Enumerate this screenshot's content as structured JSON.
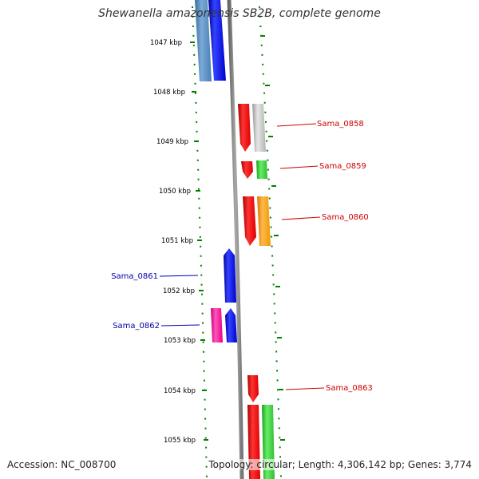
{
  "title": "Shewanella amazonensis SB2B, complete genome",
  "accession_text": "Accession: NC_008700",
  "topology_text": "Topology: circular; Length: 4,306,142 bp; Genes: 3,774",
  "colors": {
    "backbone": "#808080",
    "tick": "#008000",
    "label_right": "#cc0000",
    "label_left": "#0000aa"
  },
  "scale_labels": [
    "1047 kbp",
    "1048 kbp",
    "1049 kbp",
    "1050 kbp",
    "1051 kbp",
    "1052 kbp",
    "1053 kbp",
    "1054 kbp",
    "1055 kbp"
  ],
  "gene_labels": [
    {
      "text": "Sama_0858",
      "side": "right"
    },
    {
      "text": "Sama_0859",
      "side": "right"
    },
    {
      "text": "Sama_0860",
      "side": "right"
    },
    {
      "text": "Sama_0861",
      "side": "left"
    },
    {
      "text": "Sama_0862",
      "side": "left"
    },
    {
      "text": "Sama_0863",
      "side": "right"
    }
  ]
}
